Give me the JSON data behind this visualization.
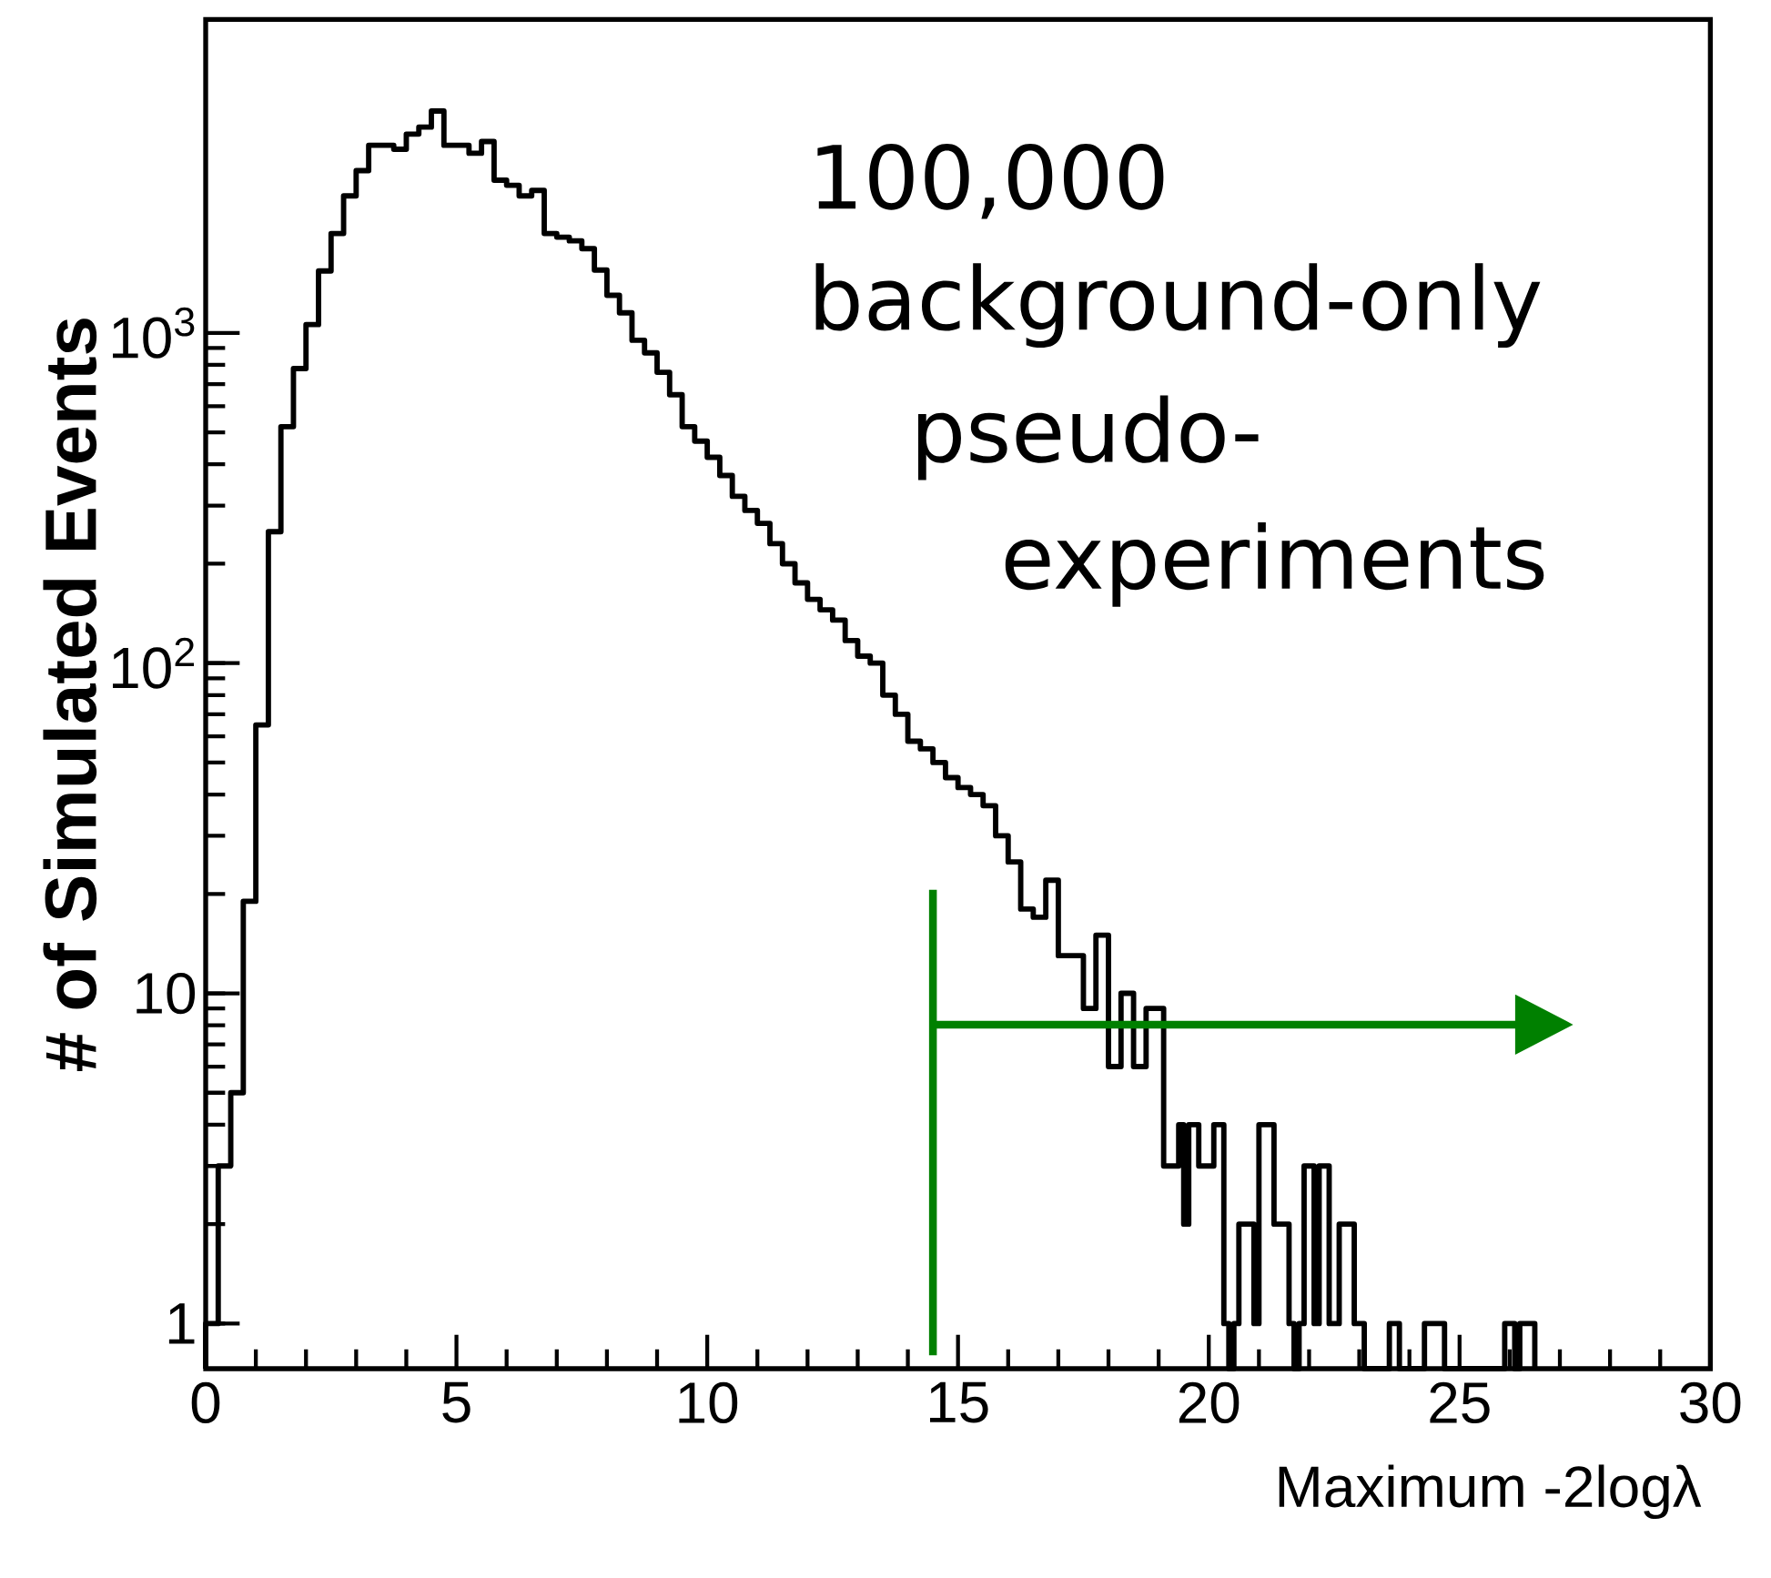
{
  "chart_data": {
    "type": "histogram",
    "xlabel": "Maximum -2logλ",
    "ylabel": "# of Simulated Events",
    "annotations": [
      "100,000",
      "background-only",
      "pseudo-",
      "experiments"
    ],
    "bins": [
      0,
      0.25,
      0.5,
      0.75,
      1,
      1.25,
      1.5,
      1.75,
      2,
      2.25,
      2.5,
      2.75,
      3,
      3.25,
      3.5,
      3.75,
      4,
      4.25,
      4.5,
      4.75,
      5,
      5.25,
      5.5,
      5.75,
      6,
      6.25,
      6.5,
      6.75,
      7,
      7.25,
      7.5,
      7.75,
      8,
      8.25,
      8.5,
      8.75,
      9,
      9.25,
      9.5,
      9.75,
      10,
      10.25,
      10.5,
      10.75,
      11,
      11.25,
      11.5,
      11.75,
      12,
      12.25,
      12.5,
      12.75,
      13,
      13.25,
      13.5,
      13.75,
      14,
      14.25,
      14.5,
      14.75,
      15,
      15.25,
      15.5,
      15.75,
      16,
      16.25,
      16.5,
      16.75,
      17,
      17.25,
      17.5,
      17.75,
      18,
      18.25,
      18.5,
      18.75,
      19,
      19.1,
      19.2,
      19.3,
      19.4,
      19.5,
      19.6,
      19.7,
      19.8,
      19.9,
      20,
      20.1,
      20.2,
      20.3,
      20.4,
      20.5,
      20.6,
      20.7,
      20.8,
      20.9,
      21,
      21.1,
      21.2,
      21.3,
      21.4,
      21.5,
      21.6,
      21.7,
      21.8,
      21.9,
      22,
      22.1,
      22.2,
      22.3,
      22.4,
      22.5,
      22.6,
      22.7,
      22.8,
      22.9,
      23,
      23.1,
      23.2,
      23.3,
      23.4,
      23.5,
      23.6,
      23.7,
      23.8,
      23.9,
      24,
      24.1,
      24.2,
      24.3,
      24.4,
      24.5,
      24.6,
      24.7,
      24.8,
      24.9,
      25,
      25.1,
      25.2,
      25.3,
      25.4,
      25.5,
      25.6,
      25.7,
      25.8,
      25.9,
      26,
      26.1,
      26.2,
      26.3,
      26.4,
      26.5
    ],
    "values": [
      1,
      3,
      5,
      19,
      65,
      250,
      520,
      780,
      1060,
      1540,
      2000,
      2600,
      3100,
      3700,
      3700,
      3600,
      4000,
      4200,
      4700,
      3700,
      3700,
      3500,
      3800,
      2900,
      2800,
      2600,
      2700,
      2000,
      1950,
      1900,
      1800,
      1550,
      1300,
      1150,
      950,
      870,
      760,
      650,
      520,
      470,
      420,
      370,
      320,
      290,
      265,
      230,
      200,
      175,
      156,
      145,
      135,
      117,
      105,
      100,
      80,
      70,
      58,
      55,
      50,
      45,
      42,
      40,
      37,
      30,
      25,
      18,
      17,
      22,
      13,
      13,
      9,
      15,
      6,
      10,
      6,
      9,
      9,
      3,
      3,
      3,
      4,
      2,
      4,
      4,
      3,
      3,
      3,
      4,
      4,
      1,
      null,
      1,
      2,
      2,
      2,
      1,
      4,
      4,
      4,
      2,
      2,
      2,
      1,
      null,
      1,
      3,
      3,
      1,
      3,
      3,
      1,
      1,
      2,
      2,
      2,
      1,
      1,
      null,
      null,
      null,
      null,
      null,
      1,
      1,
      null,
      null,
      null,
      null,
      null,
      1,
      1,
      1,
      1,
      null,
      null,
      null,
      null,
      null,
      null,
      null,
      null,
      null,
      null,
      null,
      null,
      1,
      1,
      null,
      1,
      1,
      1
    ],
    "color": "#000000",
    "log": "y",
    "xlim": [
      0,
      30
    ],
    "ylim": [
      0.73,
      8900
    ],
    "xticks": [
      0,
      5,
      10,
      15,
      20,
      25,
      30
    ],
    "yticks": [
      1,
      10,
      {
        "value": 100,
        "label": "10$^{2}$"
      },
      {
        "value": 1000,
        "label": "10$^{3}$"
      }
    ],
    "ref_lines": [
      {
        "axis": "x",
        "value": 14.5,
        "color": "#008000"
      }
    ]
  }
}
